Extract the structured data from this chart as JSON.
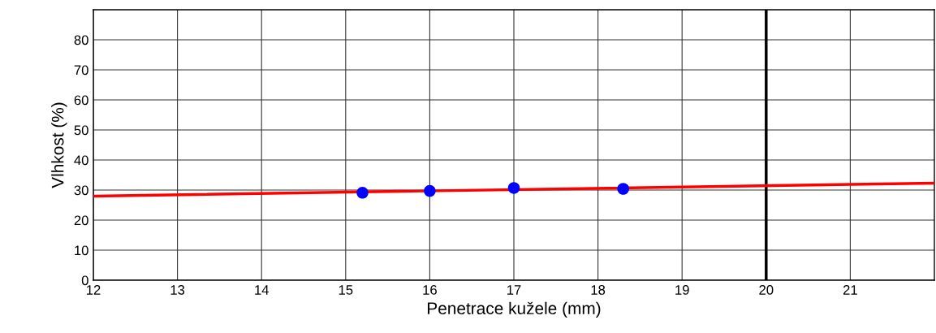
{
  "chart_data": {
    "type": "scatter",
    "xlabel": "Penetrace kužele (mm)",
    "ylabel": "Vlhkost (%)",
    "series": [
      {
        "color": "#0000ff",
        "marker": "circle",
        "x": [
          15.2,
          16.0,
          17.0,
          18.3
        ],
        "values": [
          29.1,
          29.7,
          30.7,
          30.4
        ]
      },
      {
        "type": "line",
        "color": "#ff0000",
        "x": [
          12,
          22
        ],
        "values": [
          28.0,
          32.3
        ]
      }
    ],
    "ref_lines": [
      {
        "axis": "x",
        "value": 20,
        "color": "#000000"
      }
    ],
    "xlim": [
      12,
      22
    ],
    "xticks": [
      12,
      13,
      14,
      15,
      16,
      17,
      18,
      19,
      20,
      21
    ],
    "ylim": [
      0,
      90
    ],
    "yticks": [
      0,
      10,
      20,
      30,
      40,
      50,
      60,
      70,
      80
    ],
    "grid": true
  }
}
